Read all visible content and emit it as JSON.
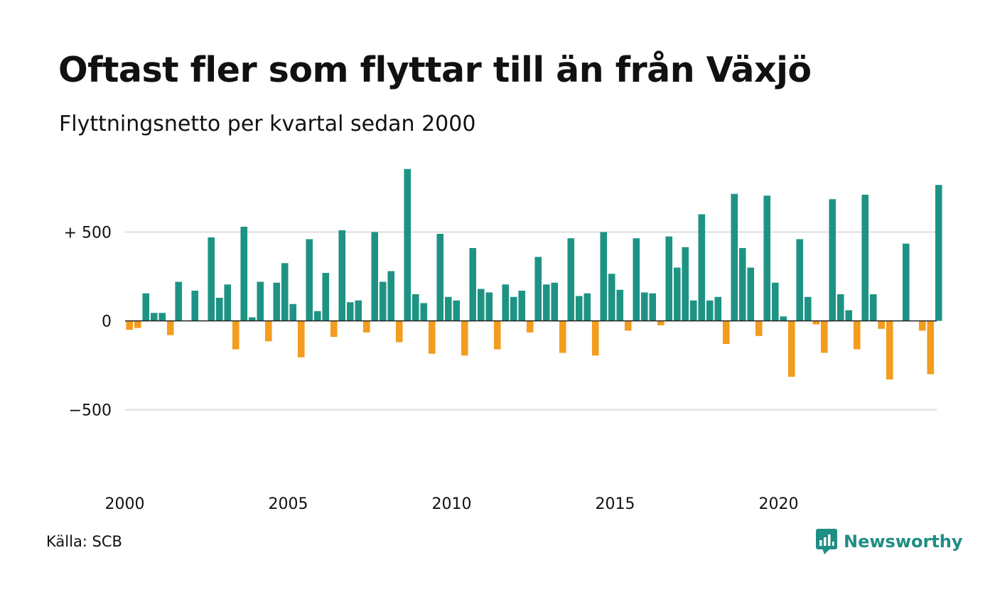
{
  "header": {
    "title": "Oftast fler som flyttar till än från Växjö",
    "subtitle": "Flyttningsnetto per kvartal sedan 2000"
  },
  "footer": {
    "source": "Källa: SCB",
    "brand": "Newsworthy"
  },
  "colors": {
    "positive": "#1e9384",
    "negative": "#f39c1e",
    "grid": "#dddddd",
    "zero_line": "#222222"
  },
  "chart_data": {
    "type": "bar",
    "title": "Oftast fler som flyttar till än från Växjö",
    "subtitle": "Flyttningsnetto per kvartal sedan 2000",
    "xlabel": "",
    "ylabel": "",
    "ylim": [
      -800,
      900
    ],
    "grid": true,
    "yticks": [
      {
        "value": 500,
        "label": "+ 500"
      },
      {
        "value": 0,
        "label": "0"
      },
      {
        "value": -500,
        "label": "−500"
      }
    ],
    "xticks": [
      {
        "year": 2000,
        "label": "2000"
      },
      {
        "year": 2005,
        "label": "2005"
      },
      {
        "year": 2010,
        "label": "2010"
      },
      {
        "year": 2015,
        "label": "2015"
      },
      {
        "year": 2020,
        "label": "2020"
      }
    ],
    "start_year": 2000,
    "frequency": "quarter",
    "values": [
      -50,
      -40,
      155,
      45,
      45,
      -80,
      220,
      0,
      170,
      0,
      470,
      130,
      205,
      -160,
      530,
      20,
      220,
      -115,
      215,
      325,
      95,
      -205,
      460,
      55,
      270,
      -90,
      510,
      105,
      115,
      -65,
      500,
      220,
      280,
      -120,
      855,
      150,
      100,
      -185,
      490,
      135,
      115,
      -195,
      410,
      180,
      160,
      -160,
      205,
      135,
      170,
      -65,
      360,
      205,
      215,
      -180,
      465,
      140,
      155,
      -195,
      500,
      265,
      175,
      -55,
      465,
      160,
      155,
      -25,
      475,
      300,
      415,
      115,
      600,
      115,
      135,
      -130,
      715,
      410,
      300,
      -85,
      705,
      215,
      25,
      -315,
      460,
      135,
      -20,
      -180,
      685,
      150,
      60,
      -160,
      710,
      150,
      -45,
      -330,
      0,
      435,
      0,
      -55,
      -300,
      765
    ]
  }
}
